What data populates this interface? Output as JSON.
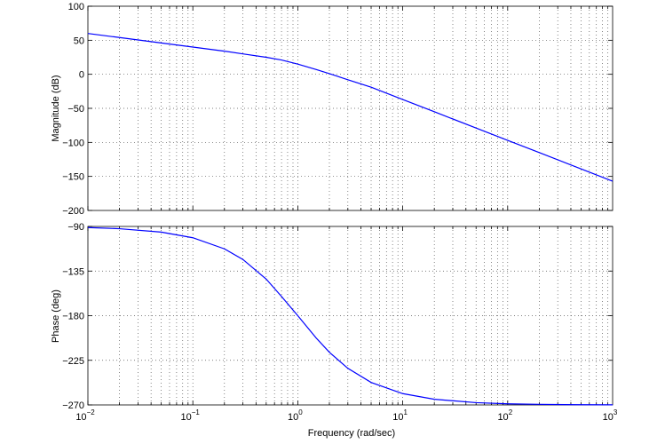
{
  "chart_data": [
    {
      "type": "line",
      "xscale": "log",
      "xlim": [
        0.01,
        1000
      ],
      "ylim": [
        -200,
        100
      ],
      "ylabel": "Magnitude (dB)",
      "grid": true,
      "yticks": [
        100,
        50,
        0,
        -50,
        -100,
        -150,
        -200
      ],
      "series": [
        {
          "x": [
            0.01,
            0.02,
            0.05,
            0.1,
            0.2,
            0.3,
            0.5,
            0.7,
            1,
            1.5,
            2,
            3,
            5,
            10,
            20,
            50,
            100,
            200,
            500,
            1000
          ],
          "y": [
            60,
            54,
            46,
            40,
            34,
            30,
            25,
            21,
            15,
            7,
            1,
            -8,
            -19,
            -37,
            -55,
            -79,
            -97,
            -115,
            -139,
            -157
          ]
        }
      ]
    },
    {
      "type": "line",
      "xscale": "log",
      "xlim": [
        0.01,
        1000
      ],
      "ylim": [
        -270,
        -90
      ],
      "ylabel": "Phase (deg)",
      "xlabel": "Frequency  (rad/sec)",
      "grid": true,
      "yticks": [
        -90,
        -135,
        -180,
        -225,
        -270
      ],
      "series": [
        {
          "x": [
            0.01,
            0.02,
            0.05,
            0.1,
            0.2,
            0.3,
            0.5,
            0.7,
            1,
            1.5,
            2,
            3,
            5,
            10,
            20,
            50,
            100,
            200,
            500,
            1000
          ],
          "y": [
            -91.1,
            -92.3,
            -95.7,
            -101.4,
            -112.6,
            -123.3,
            -143.1,
            -160.6,
            -180,
            -202.6,
            -216.9,
            -233.1,
            -247.3,
            -258.6,
            -264.3,
            -267.7,
            -268.9,
            -269.4,
            -269.8,
            -269.9
          ]
        }
      ]
    }
  ],
  "xaxis": {
    "tick_bases": [
      "10",
      "10",
      "10",
      "10",
      "10",
      "10"
    ],
    "tick_exponents": [
      "−2",
      "−1",
      "0",
      "1",
      "2",
      "3"
    ]
  },
  "colors": {
    "line": "#0000ff",
    "frame": "#000000",
    "grid": "#555555"
  }
}
